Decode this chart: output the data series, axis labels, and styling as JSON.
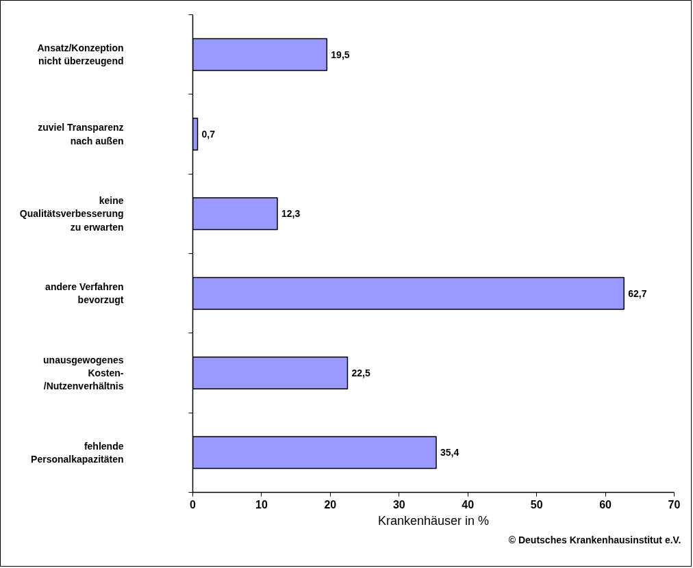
{
  "chart_data": {
    "type": "bar",
    "orientation": "horizontal",
    "categories": [
      "Ansatz/Konzeption\nnicht überzeugend",
      "zuviel Transparenz\nnach außen",
      "keine\nQualitätsverbesserung\nzu erwarten",
      "andere Verfahren\nbevorzugt",
      "unausgewogenes\nKosten-\n/Nutzenverhältnis",
      "fehlende\nPersonalkapazitäten"
    ],
    "values": [
      19.5,
      0.7,
      12.3,
      62.7,
      22.5,
      35.4
    ],
    "value_labels": [
      "19,5",
      "0,7",
      "12,3",
      "62,7",
      "22,5",
      "35,4"
    ],
    "color": "#9999ff",
    "xlim": [
      0,
      70
    ],
    "xticks": [
      0,
      10,
      20,
      30,
      40,
      50,
      60,
      70
    ],
    "xlabel": "Krankenhäuser in %",
    "annotations": [
      "© Deutsches Krankenhausinstitut e.V."
    ],
    "grid": false
  }
}
